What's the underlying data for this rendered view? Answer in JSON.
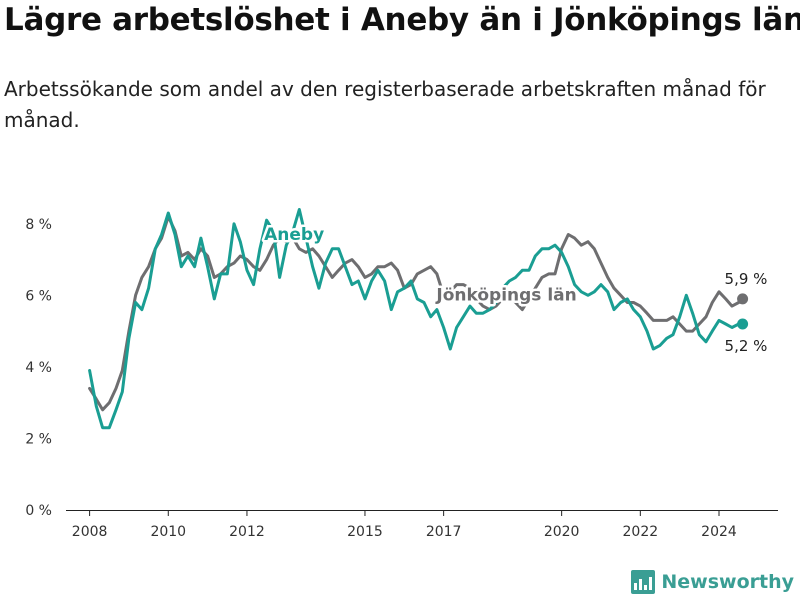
{
  "title": "Lägre arbetslöshet i Aneby än i Jönköpings län",
  "subtitle": "Arbetssökande som andel av den registerbaserade arbetskraften månad för månad.",
  "brand": "Newsworthy",
  "chart_data": {
    "type": "line",
    "ylim": [
      0,
      9
    ],
    "xlim": [
      2007.4,
      2025.5
    ],
    "y_ticks": [
      0,
      2,
      4,
      6,
      8
    ],
    "y_tick_labels": [
      "0 %",
      "2 %",
      "4 %",
      "6 %",
      "8 %"
    ],
    "x_ticks": [
      2008,
      2010,
      2012,
      2015,
      2017,
      2020,
      2022,
      2024
    ],
    "x_tick_labels": [
      "2008",
      "2010",
      "2012",
      "2015",
      "2017",
      "2020",
      "2022",
      "2024"
    ],
    "grid": false,
    "series": [
      {
        "name": "Jönköpings län",
        "color": "#6e6e70",
        "end_label": "5,9 %",
        "x": [
          2008.0,
          2008.17,
          2008.33,
          2008.5,
          2008.67,
          2008.83,
          2009.0,
          2009.17,
          2009.33,
          2009.5,
          2009.67,
          2009.83,
          2010.0,
          2010.17,
          2010.33,
          2010.5,
          2010.67,
          2010.83,
          2011.0,
          2011.17,
          2011.33,
          2011.5,
          2011.67,
          2011.83,
          2012.0,
          2012.17,
          2012.33,
          2012.5,
          2012.67,
          2012.83,
          2013.0,
          2013.17,
          2013.33,
          2013.5,
          2013.67,
          2013.83,
          2014.0,
          2014.17,
          2014.33,
          2014.5,
          2014.67,
          2014.83,
          2015.0,
          2015.17,
          2015.33,
          2015.5,
          2015.67,
          2015.83,
          2016.0,
          2016.17,
          2016.33,
          2016.5,
          2016.67,
          2016.83,
          2017.0,
          2017.17,
          2017.33,
          2017.5,
          2017.67,
          2017.83,
          2018.0,
          2018.17,
          2018.33,
          2018.5,
          2018.67,
          2018.83,
          2019.0,
          2019.17,
          2019.33,
          2019.5,
          2019.67,
          2019.83,
          2020.0,
          2020.17,
          2020.33,
          2020.5,
          2020.67,
          2020.83,
          2021.0,
          2021.17,
          2021.33,
          2021.5,
          2021.67,
          2021.83,
          2022.0,
          2022.17,
          2022.33,
          2022.5,
          2022.67,
          2022.83,
          2023.0,
          2023.17,
          2023.33,
          2023.5,
          2023.67,
          2023.83,
          2024.0,
          2024.17,
          2024.33,
          2024.5,
          2024.6
        ],
        "values": [
          3.4,
          3.1,
          2.8,
          3.0,
          3.4,
          3.9,
          5.0,
          6.0,
          6.5,
          6.8,
          7.3,
          7.6,
          8.2,
          7.8,
          7.1,
          7.2,
          7.0,
          7.3,
          7.1,
          6.5,
          6.6,
          6.8,
          6.9,
          7.1,
          7.0,
          6.8,
          6.7,
          7.0,
          7.4,
          7.6,
          7.5,
          7.6,
          7.3,
          7.2,
          7.3,
          7.1,
          6.8,
          6.5,
          6.7,
          6.9,
          7.0,
          6.8,
          6.5,
          6.6,
          6.8,
          6.8,
          6.9,
          6.7,
          6.2,
          6.3,
          6.6,
          6.7,
          6.8,
          6.6,
          6.0,
          6.1,
          6.3,
          6.3,
          6.2,
          5.9,
          5.7,
          5.6,
          5.7,
          5.9,
          6.0,
          5.8,
          5.6,
          5.9,
          6.2,
          6.5,
          6.6,
          6.6,
          7.3,
          7.7,
          7.6,
          7.4,
          7.5,
          7.3,
          6.9,
          6.5,
          6.2,
          6.0,
          5.8,
          5.8,
          5.7,
          5.5,
          5.3,
          5.3,
          5.3,
          5.4,
          5.2,
          5.0,
          5.0,
          5.2,
          5.4,
          5.8,
          6.1,
          5.9,
          5.7,
          5.8,
          5.9
        ]
      },
      {
        "name": "Aneby",
        "color": "#1a9e93",
        "end_label": "5,2 %",
        "x": [
          2008.0,
          2008.17,
          2008.33,
          2008.5,
          2008.67,
          2008.83,
          2009.0,
          2009.17,
          2009.33,
          2009.5,
          2009.67,
          2009.83,
          2010.0,
          2010.17,
          2010.33,
          2010.5,
          2010.67,
          2010.83,
          2011.0,
          2011.17,
          2011.33,
          2011.5,
          2011.67,
          2011.83,
          2012.0,
          2012.17,
          2012.33,
          2012.5,
          2012.67,
          2012.83,
          2013.0,
          2013.17,
          2013.33,
          2013.5,
          2013.67,
          2013.83,
          2014.0,
          2014.17,
          2014.33,
          2014.5,
          2014.67,
          2014.83,
          2015.0,
          2015.17,
          2015.33,
          2015.5,
          2015.67,
          2015.83,
          2016.0,
          2016.17,
          2016.33,
          2016.5,
          2016.67,
          2016.83,
          2017.0,
          2017.17,
          2017.33,
          2017.5,
          2017.67,
          2017.83,
          2018.0,
          2018.17,
          2018.33,
          2018.5,
          2018.67,
          2018.83,
          2019.0,
          2019.17,
          2019.33,
          2019.5,
          2019.67,
          2019.83,
          2020.0,
          2020.17,
          2020.33,
          2020.5,
          2020.67,
          2020.83,
          2021.0,
          2021.17,
          2021.33,
          2021.5,
          2021.67,
          2021.83,
          2022.0,
          2022.17,
          2022.33,
          2022.5,
          2022.67,
          2022.83,
          2023.0,
          2023.17,
          2023.33,
          2023.5,
          2023.67,
          2023.83,
          2024.0,
          2024.17,
          2024.33,
          2024.5,
          2024.6
        ],
        "values": [
          3.9,
          2.9,
          2.3,
          2.3,
          2.8,
          3.3,
          4.8,
          5.8,
          5.6,
          6.2,
          7.3,
          7.7,
          8.3,
          7.7,
          6.8,
          7.1,
          6.8,
          7.6,
          6.8,
          5.9,
          6.6,
          6.6,
          8.0,
          7.5,
          6.7,
          6.3,
          7.3,
          8.1,
          7.8,
          6.5,
          7.4,
          7.8,
          8.4,
          7.6,
          6.8,
          6.2,
          6.9,
          7.3,
          7.3,
          6.8,
          6.3,
          6.4,
          5.9,
          6.4,
          6.7,
          6.4,
          5.6,
          6.1,
          6.2,
          6.4,
          5.9,
          5.8,
          5.4,
          5.6,
          5.1,
          4.5,
          5.1,
          5.4,
          5.7,
          5.5,
          5.5,
          5.6,
          5.8,
          6.2,
          6.4,
          6.5,
          6.7,
          6.7,
          7.1,
          7.3,
          7.3,
          7.4,
          7.2,
          6.8,
          6.3,
          6.1,
          6.0,
          6.1,
          6.3,
          6.1,
          5.6,
          5.8,
          5.9,
          5.6,
          5.4,
          5.0,
          4.5,
          4.6,
          4.8,
          4.9,
          5.4,
          6.0,
          5.5,
          4.9,
          4.7,
          5.0,
          5.3,
          5.2,
          5.1,
          5.2,
          5.2
        ]
      }
    ]
  }
}
